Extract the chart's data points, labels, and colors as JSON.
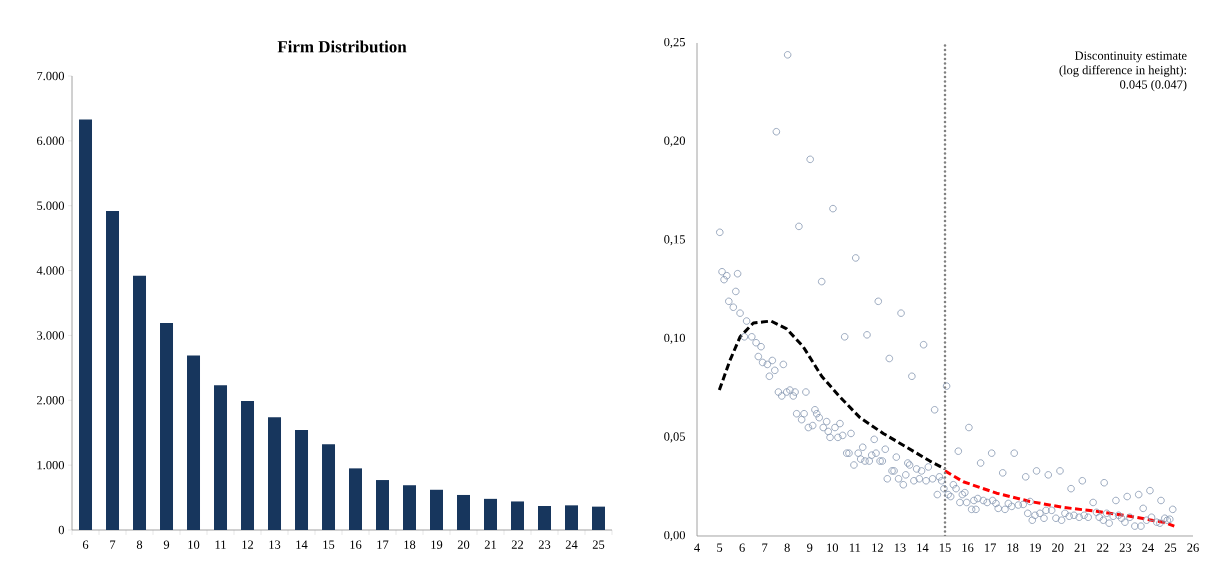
{
  "chart_data": [
    {
      "type": "bar",
      "title": "Firm Distribution",
      "categories": [
        "6",
        "7",
        "8",
        "9",
        "10",
        "11",
        "12",
        "13",
        "14",
        "15",
        "16",
        "17",
        "18",
        "19",
        "20",
        "21",
        "22",
        "23",
        "24",
        "25"
      ],
      "values": [
        6330,
        4920,
        3920,
        3190,
        2690,
        2230,
        1990,
        1740,
        1540,
        1320,
        950,
        770,
        690,
        620,
        540,
        480,
        440,
        370,
        380,
        360
      ],
      "color": "#17365d",
      "ylim": [
        0,
        7000
      ],
      "yticks": [
        0,
        {
          "value": 1000,
          "label": "1.000"
        },
        {
          "value": 2000,
          "label": "2.000"
        },
        {
          "value": 3000,
          "label": "3.000"
        },
        {
          "value": 4000,
          "label": "4.000"
        },
        {
          "value": 5000,
          "label": "5.000"
        },
        {
          "value": 6000,
          "label": "6.000"
        },
        {
          "value": 7000,
          "label": "7.000"
        }
      ]
    },
    {
      "type": "scatter",
      "xlim": [
        4,
        26
      ],
      "ylim": [
        0,
        0.25
      ],
      "xticks": [
        4,
        5,
        6,
        7,
        8,
        9,
        10,
        11,
        12,
        13,
        14,
        15,
        16,
        17,
        18,
        19,
        20,
        21,
        22,
        23,
        24,
        25,
        26
      ],
      "yticks": [
        {
          "value": 0,
          "label": "0,00"
        },
        {
          "value": 0.05,
          "label": "0,05"
        },
        {
          "value": 0.1,
          "label": "0,10"
        },
        {
          "value": 0.15,
          "label": "0,15"
        },
        {
          "value": 0.2,
          "label": "0,20"
        },
        {
          "value": 0.25,
          "label": "0,25"
        }
      ],
      "annotations": [
        "Discontinuity estimate",
        "(log difference in height):",
        "0.045 (0.047)"
      ],
      "ref_lines": [
        {
          "axis": "x",
          "value": 15,
          "color": "#808080",
          "line_style": "dotted"
        }
      ],
      "series": [
        {
          "type": "scatter",
          "marker": "circle",
          "color": "#8496b0",
          "x": [
            8.02,
            7.52,
            9.02,
            10.03,
            8.52,
            5.01,
            11.04,
            5.11,
            5.2,
            5.32,
            5.8,
            9.53,
            5.72,
            5.41,
            5.61,
            5.91,
            6.2,
            12.04,
            13.05,
            10.55,
            11.54,
            14.05,
            12.53,
            13.53,
            15.07,
            14.54,
            6.1,
            6.43,
            6.62,
            6.84,
            6.72,
            6.91,
            7.12,
            7.34,
            7.21,
            7.45,
            7.83,
            7.61,
            7.76,
            7.98,
            8.12,
            8.27,
            8.35,
            8.83,
            8.42,
            8.75,
            8.64,
            9.23,
            9.31,
            9.42,
            8.94,
            9.13,
            9.6,
            9.75,
            9.82,
            9.9,
            10.12,
            10.34,
            10.25,
            10.46,
            10.83,
            10.64,
            10.74,
            10.96,
            11.15,
            11.35,
            11.26,
            11.45,
            11.64,
            11.75,
            11.86,
            11.94,
            12.12,
            12.22,
            12.35,
            12.44,
            12.65,
            12.74,
            12.84,
            12.94,
            13.15,
            13.26,
            13.35,
            13.43,
            13.62,
            13.74,
            13.86,
            13.96,
            14.16,
            14.26,
            14.45,
            14.66,
            14.75,
            14.85,
            14.95,
            15.14,
            15.25,
            16.06,
            15.59,
            17.07,
            18.07,
            16.58,
            17.56,
            18.58,
            19.06,
            19.58,
            20.1,
            20.59,
            21.09,
            22.06,
            21.57,
            22.58,
            23.08,
            23.59,
            24.09,
            24.58,
            25.1,
            23.79,
            15.37,
            15.49,
            15.77,
            15.66,
            15.88,
            15.96,
            16.18,
            16.37,
            16.28,
            16.45,
            16.7,
            16.87,
            17.11,
            17.26,
            17.36,
            17.66,
            17.81,
            17.96,
            18.25,
            18.47,
            18.67,
            18.77,
            18.87,
            18.99,
            19.21,
            19.39,
            19.48,
            19.73,
            19.92,
            20.17,
            20.32,
            20.51,
            20.72,
            20.95,
            21.17,
            21.35,
            21.72,
            21.84,
            22.02,
            22.17,
            22.28,
            22.46,
            22.7,
            22.83,
            22.98,
            23.2,
            23.42,
            23.69,
            23.94,
            24.16,
            24.39,
            24.53,
            24.75,
            24.97,
            24.86
          ],
          "values": [
            0.244,
            0.205,
            0.191,
            0.166,
            0.157,
            0.154,
            0.141,
            0.134,
            0.13,
            0.132,
            0.133,
            0.129,
            0.124,
            0.119,
            0.116,
            0.113,
            0.109,
            0.119,
            0.113,
            0.101,
            0.102,
            0.097,
            0.09,
            0.081,
            0.076,
            0.064,
            0.101,
            0.101,
            0.098,
            0.096,
            0.091,
            0.088,
            0.087,
            0.089,
            0.081,
            0.084,
            0.087,
            0.073,
            0.071,
            0.073,
            0.074,
            0.071,
            0.073,
            0.073,
            0.062,
            0.062,
            0.059,
            0.064,
            0.062,
            0.06,
            0.055,
            0.056,
            0.055,
            0.058,
            0.053,
            0.05,
            0.055,
            0.057,
            0.05,
            0.051,
            0.052,
            0.042,
            0.042,
            0.036,
            0.042,
            0.045,
            0.039,
            0.038,
            0.038,
            0.041,
            0.049,
            0.042,
            0.038,
            0.038,
            0.044,
            0.029,
            0.033,
            0.033,
            0.04,
            0.029,
            0.026,
            0.031,
            0.037,
            0.036,
            0.028,
            0.034,
            0.029,
            0.033,
            0.028,
            0.035,
            0.029,
            0.021,
            0.03,
            0.028,
            0.024,
            0.021,
            0.02,
            0.055,
            0.043,
            0.042,
            0.042,
            0.037,
            0.032,
            0.03,
            0.033,
            0.031,
            0.033,
            0.024,
            0.028,
            0.027,
            0.017,
            0.018,
            0.02,
            0.021,
            0.023,
            0.018,
            0.0135,
            0.014,
            0.026,
            0.024,
            0.021,
            0.017,
            0.022,
            0.017,
            0.0135,
            0.0135,
            0.018,
            0.019,
            0.018,
            0.017,
            0.018,
            0.0165,
            0.014,
            0.0135,
            0.0165,
            0.015,
            0.0157,
            0.016,
            0.0115,
            0.0175,
            0.008,
            0.0105,
            0.0115,
            0.009,
            0.013,
            0.013,
            0.009,
            0.008,
            0.0115,
            0.01,
            0.0105,
            0.0095,
            0.0105,
            0.0095,
            0.012,
            0.0095,
            0.008,
            0.0115,
            0.0065,
            0.01,
            0.0105,
            0.009,
            0.007,
            0.0095,
            0.005,
            0.005,
            0.008,
            0.0095,
            0.007,
            0.0065,
            0.009,
            0.0085,
            0.008
          ]
        },
        {
          "type": "line",
          "marker": "none",
          "line_style": "dashed",
          "color": "#000000",
          "x": [
            4.99,
            5.46,
            5.91,
            6.5,
            7.28,
            7.98,
            8.71,
            9.53,
            10.34,
            11.23,
            12.26,
            13.3,
            14.33,
            15.0
          ],
          "values": [
            0.074,
            0.089,
            0.101,
            0.108,
            0.109,
            0.105,
            0.096,
            0.081,
            0.0705,
            0.06,
            0.052,
            0.045,
            0.038,
            0.034
          ]
        },
        {
          "type": "line",
          "marker": "none",
          "line_style": "dashed",
          "color": "#ff0000",
          "x": [
            15.0,
            15.81,
            17.29,
            18.77,
            20.24,
            21.72,
            23.2,
            24.68,
            25.17
          ],
          "values": [
            0.033,
            0.0275,
            0.0217,
            0.0175,
            0.0145,
            0.0125,
            0.01,
            0.007,
            0.005
          ]
        }
      ]
    }
  ]
}
